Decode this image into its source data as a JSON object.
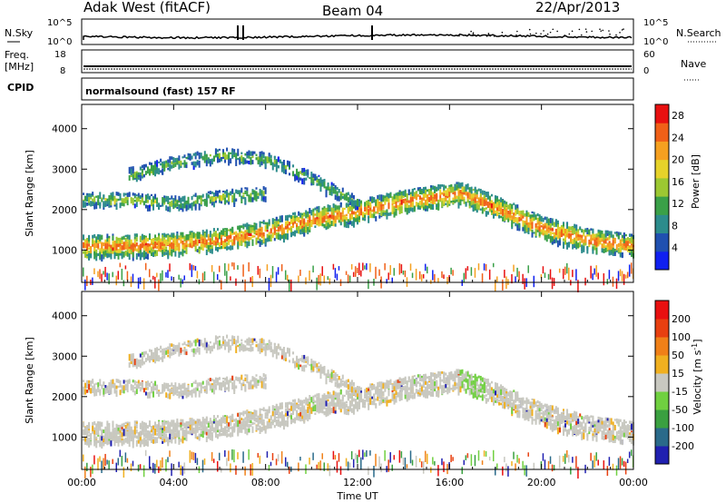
{
  "header": {
    "station": "Adak West (fitACF)",
    "beam": "Beam 04",
    "date": "22/Apr/2013"
  },
  "status_panels": {
    "nsky_label": "N.Sky",
    "nsky_ticks": [
      "10^5",
      "10^0"
    ],
    "nsearch_label": "N.Search",
    "freq_label_line1": "Freq.",
    "freq_label_line2": "[MHz]",
    "freq_ticks": [
      "18",
      "8"
    ],
    "nave_label": "Nave",
    "nave_ticks": [
      "60",
      "0"
    ],
    "cpid_label": "CPID",
    "cpid_value": "normalsound (fast) 157 RF"
  },
  "chart_data": [
    {
      "type": "heatmap",
      "name": "power",
      "ylabel": "Slant Range [km]",
      "xlabel": "Time UT",
      "x_ticks": [
        "00:00",
        "04:00",
        "08:00",
        "12:00",
        "16:00",
        "20:00",
        "00:00"
      ],
      "y_ticks": [
        1000,
        2000,
        3000,
        4000
      ],
      "xlim_hours": [
        0,
        24
      ],
      "ylim_km": [
        200,
        4600
      ],
      "colorbar": {
        "label": "Power [dB]",
        "ticks": [
          4,
          8,
          12,
          16,
          20,
          24,
          28
        ],
        "range": [
          0,
          30
        ],
        "colors": [
          "#1020f0",
          "#2050b0",
          "#2c8c8c",
          "#3aa048",
          "#9cc832",
          "#e6d22a",
          "#f5a020",
          "#f06018",
          "#e81010"
        ]
      },
      "echo_bands": [
        {
          "center_km": [
            1150,
            1150,
            1200,
            1300,
            1500,
            1800,
            2000,
            2250,
            2450,
            2100,
            1600,
            1300,
            1150
          ],
          "hours": [
            0,
            2,
            4,
            6,
            8,
            10,
            12,
            14,
            16.5,
            18,
            20,
            22,
            24
          ],
          "peak_db": 26
        },
        {
          "center_km": [
            2300,
            2300,
            2200,
            2350,
            2450
          ],
          "hours": [
            0,
            2,
            4,
            6,
            8
          ],
          "peak_db": 16
        },
        {
          "center_km": [
            2900,
            3200,
            3400,
            3300,
            2800,
            2200
          ],
          "hours": [
            2,
            4,
            6,
            8,
            10,
            12
          ],
          "peak_db": 14
        }
      ]
    },
    {
      "type": "heatmap",
      "name": "velocity",
      "ylabel": "Slant Range [km]",
      "xlabel": "Time UT",
      "x_ticks": [
        "00:00",
        "04:00",
        "08:00",
        "12:00",
        "16:00",
        "20:00",
        "00:00"
      ],
      "y_ticks": [
        1000,
        2000,
        3000,
        4000
      ],
      "xlim_hours": [
        0,
        24
      ],
      "ylim_km": [
        200,
        4600
      ],
      "colorbar": {
        "label": "Velocity [m s^-1]",
        "ticks": [
          200,
          100,
          50,
          15,
          -15,
          -50,
          -100,
          -200
        ],
        "colors": [
          "#2020b0",
          "#2a6a8a",
          "#3aa040",
          "#70d040",
          "#c8c8c0",
          "#f0b020",
          "#f08018",
          "#e84010",
          "#e81010"
        ]
      }
    }
  ],
  "time_axis": {
    "ticks": [
      "00:00",
      "04:00",
      "08:00",
      "12:00",
      "16:00",
      "20:00",
      "00:00"
    ],
    "label": "Time UT"
  }
}
